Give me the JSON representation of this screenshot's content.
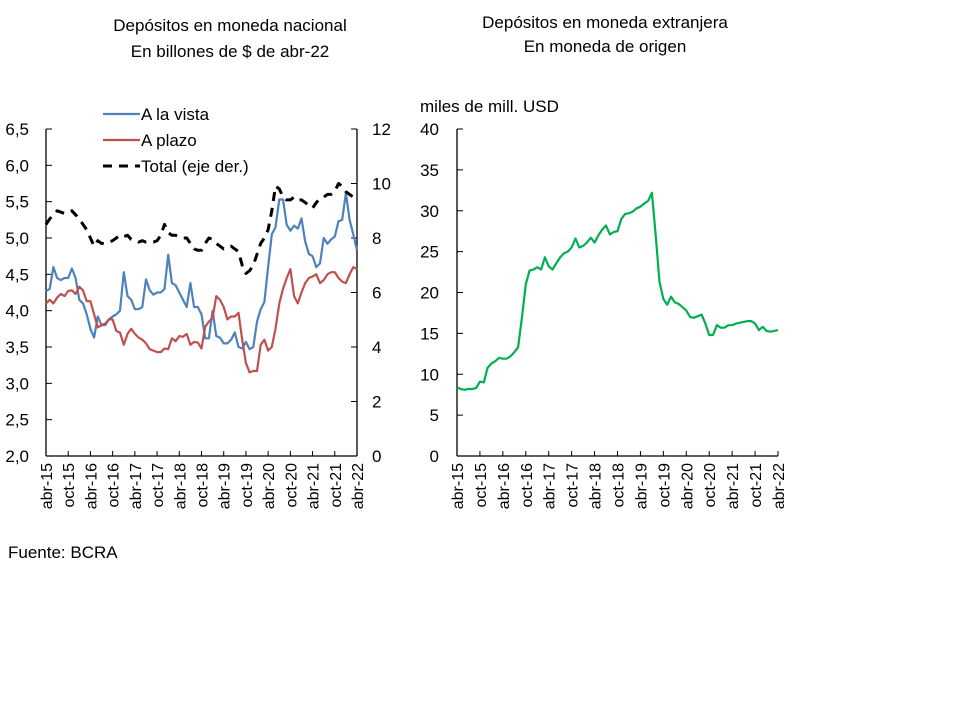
{
  "charts_titles": {
    "left": [
      "Depósitos en moneda nacional",
      "En billones de $ de abr-22"
    ],
    "right": [
      "Depósitos en moneda extranjera",
      "En moneda de origen"
    ]
  },
  "source": "Fuente: BCRA",
  "chart_data": [
    {
      "type": "line",
      "title": "Depósitos en moneda nacional\nEn billones de $ de abr-22",
      "x_start": "abr-15",
      "x_end": "abr-22",
      "frequency": "monthly",
      "x_tick_labels": [
        "abr-15",
        "oct-15",
        "abr-16",
        "oct-16",
        "abr-17",
        "oct-17",
        "abr-18",
        "oct-18",
        "abr-19",
        "oct-19",
        "abr-20",
        "oct-20",
        "abr-21",
        "oct-21",
        "abr-22"
      ],
      "ylim_left": [
        2.0,
        6.5
      ],
      "y_ticks_left": [
        "2,0",
        "2,5",
        "3,0",
        "3,5",
        "4,0",
        "4,5",
        "5,0",
        "5,5",
        "6,0",
        "6,5"
      ],
      "ylim_right": [
        0,
        12
      ],
      "y_ticks_right": [
        "0",
        "2",
        "4",
        "6",
        "8",
        "10",
        "12"
      ],
      "legend_position": "top-left",
      "grid": false,
      "series": [
        {
          "name": "A la vista",
          "axis": "left",
          "color": "#4f81bd",
          "style": "solid",
          "values": [
            4.27,
            4.3,
            4.6,
            4.45,
            4.42,
            4.45,
            4.45,
            4.58,
            4.45,
            4.15,
            4.1,
            3.95,
            3.75,
            3.63,
            3.92,
            3.8,
            3.8,
            3.88,
            3.92,
            3.95,
            4.0,
            4.53,
            4.2,
            4.15,
            4.02,
            4.02,
            4.05,
            4.43,
            4.28,
            4.22,
            4.25,
            4.25,
            4.3,
            4.77,
            4.38,
            4.35,
            4.25,
            4.15,
            4.05,
            4.38,
            4.05,
            4.05,
            3.95,
            3.62,
            3.62,
            4.0,
            3.65,
            3.63,
            3.55,
            3.55,
            3.6,
            3.7,
            3.5,
            3.48,
            3.57,
            3.47,
            3.5,
            3.85,
            4.02,
            4.12,
            4.6,
            5.05,
            5.15,
            5.53,
            5.53,
            5.18,
            5.1,
            5.17,
            5.13,
            5.27,
            4.95,
            4.78,
            4.75,
            4.6,
            4.65,
            5.0,
            4.92,
            4.98,
            5.02,
            5.23,
            5.25,
            5.62,
            5.25,
            5.05,
            4.83
          ]
        },
        {
          "name": "A plazo",
          "axis": "left",
          "color": "#c0504d",
          "style": "solid",
          "values": [
            4.1,
            4.15,
            4.1,
            4.18,
            4.23,
            4.2,
            4.27,
            4.28,
            4.23,
            4.33,
            4.28,
            4.13,
            4.13,
            3.95,
            3.77,
            3.8,
            3.82,
            3.88,
            3.88,
            3.72,
            3.7,
            3.53,
            3.68,
            3.75,
            3.68,
            3.63,
            3.6,
            3.55,
            3.47,
            3.45,
            3.43,
            3.43,
            3.48,
            3.47,
            3.62,
            3.58,
            3.65,
            3.64,
            3.68,
            3.53,
            3.57,
            3.56,
            3.48,
            3.78,
            3.85,
            3.9,
            4.2,
            4.15,
            4.05,
            3.88,
            3.92,
            3.92,
            3.97,
            3.6,
            3.28,
            3.15,
            3.17,
            3.17,
            3.53,
            3.6,
            3.45,
            3.5,
            3.75,
            4.1,
            4.3,
            4.45,
            4.57,
            4.2,
            4.1,
            4.25,
            4.38,
            4.45,
            4.47,
            4.5,
            4.38,
            4.42,
            4.5,
            4.53,
            4.53,
            4.45,
            4.4,
            4.38,
            4.5,
            4.6,
            4.57
          ]
        },
        {
          "name": "Total (eje der.)",
          "axis": "right",
          "color": "#000000",
          "style": "dashed",
          "values": [
            8.5,
            8.7,
            8.85,
            9.0,
            8.95,
            8.9,
            8.95,
            9.0,
            8.85,
            8.7,
            8.5,
            8.3,
            8.0,
            7.7,
            7.9,
            7.8,
            7.8,
            7.85,
            7.9,
            8.0,
            8.1,
            8.05,
            8.1,
            7.95,
            7.9,
            7.85,
            7.9,
            7.85,
            7.85,
            7.85,
            7.9,
            8.1,
            8.5,
            8.2,
            8.1,
            8.1,
            8.05,
            8.0,
            8.0,
            7.8,
            7.6,
            7.55,
            7.55,
            7.8,
            8.0,
            7.95,
            7.8,
            7.7,
            7.6,
            7.65,
            7.7,
            7.6,
            7.5,
            7.0,
            6.7,
            6.8,
            7.0,
            7.4,
            7.8,
            8.0,
            8.3,
            9.0,
            9.9,
            9.8,
            9.5,
            9.4,
            9.4,
            9.5,
            9.4,
            9.4,
            9.3,
            9.2,
            9.1,
            9.3,
            9.45,
            9.5,
            9.6,
            9.6,
            9.7,
            10.0,
            9.9,
            9.7,
            9.6,
            9.5,
            9.5
          ]
        }
      ]
    },
    {
      "type": "line",
      "title": "Depósitos en moneda extranjera\nEn moneda de origen",
      "ylabel": "miles de mill. USD",
      "x_start": "abr-15",
      "x_end": "abr-22",
      "frequency": "monthly",
      "x_tick_labels": [
        "abr-15",
        "oct-15",
        "abr-16",
        "oct-16",
        "abr-17",
        "oct-17",
        "abr-18",
        "oct-18",
        "abr-19",
        "oct-19",
        "abr-20",
        "oct-20",
        "abr-21",
        "oct-21",
        "abr-22"
      ],
      "ylim": [
        0,
        40
      ],
      "y_ticks": [
        "0",
        "5",
        "10",
        "15",
        "20",
        "25",
        "30",
        "35",
        "40"
      ],
      "grid": false,
      "series": [
        {
          "color": "#00b050",
          "style": "solid",
          "values": [
            8.4,
            8.2,
            8.1,
            8.2,
            8.2,
            8.3,
            9.1,
            9.0,
            10.8,
            11.3,
            11.6,
            12.0,
            11.9,
            11.9,
            12.2,
            12.7,
            13.3,
            17.0,
            21.0,
            22.7,
            22.8,
            23.1,
            22.8,
            24.3,
            23.2,
            22.8,
            23.6,
            24.3,
            24.8,
            25.0,
            25.5,
            26.6,
            25.5,
            25.7,
            26.1,
            26.7,
            26.1,
            27.0,
            27.7,
            28.2,
            27.1,
            27.4,
            27.5,
            29.0,
            29.6,
            29.7,
            29.9,
            30.3,
            30.5,
            30.9,
            31.2,
            32.2,
            27.0,
            21.3,
            19.2,
            18.5,
            19.5,
            18.8,
            18.6,
            18.2,
            17.8,
            17.0,
            16.9,
            17.1,
            17.3,
            16.2,
            14.8,
            14.8,
            16.0,
            15.7,
            15.7,
            16.0,
            16.0,
            16.2,
            16.3,
            16.4,
            16.5,
            16.5,
            16.2,
            15.4,
            15.8,
            15.3,
            15.2,
            15.3,
            15.4
          ]
        }
      ]
    }
  ]
}
